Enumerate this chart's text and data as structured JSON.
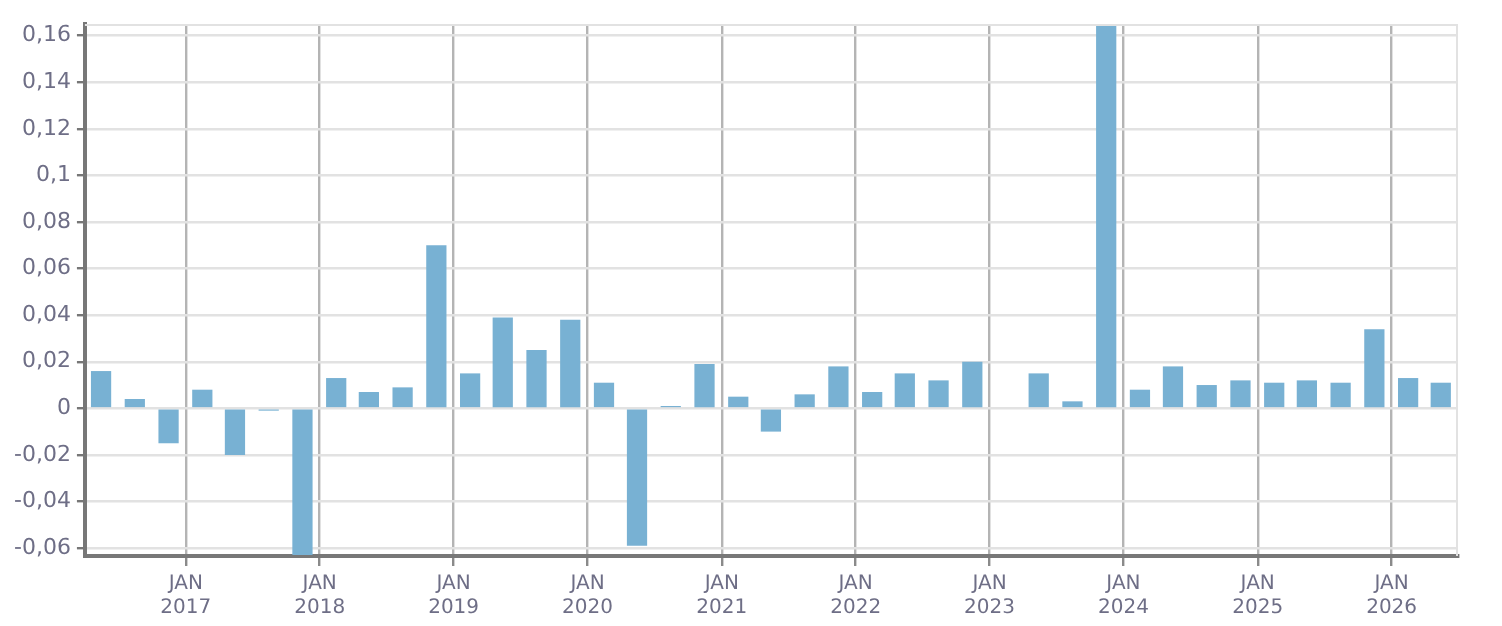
{
  "chart_data": {
    "type": "bar",
    "x": [
      "2016-05-15",
      "2016-08-15",
      "2016-11-15",
      "2017-02-15",
      "2017-05-15",
      "2017-08-15",
      "2017-11-15",
      "2018-02-15",
      "2018-05-15",
      "2018-08-15",
      "2018-11-15",
      "2019-02-15",
      "2019-05-15",
      "2019-08-15",
      "2019-11-15",
      "2020-02-15",
      "2020-05-15",
      "2020-08-15",
      "2020-11-15",
      "2021-02-15",
      "2021-05-15",
      "2021-08-15",
      "2021-11-15",
      "2022-02-15",
      "2022-05-15",
      "2022-08-15",
      "2022-11-15",
      "2023-02-15",
      "2023-05-15",
      "2023-08-15",
      "2023-11-15",
      "2024-02-15",
      "2024-05-15",
      "2024-08-15",
      "2024-11-15",
      "2025-02-15",
      "2025-05-15",
      "2025-08-15",
      "2025-11-15",
      "2026-02-15",
      "2026-05-15"
    ],
    "values": [
      0.016,
      0.004,
      -0.015,
      0.008,
      -0.02,
      -0.001,
      -0.063,
      0.013,
      0.007,
      0.009,
      0.07,
      0.015,
      0.039,
      0.025,
      0.038,
      0.011,
      -0.059,
      0.001,
      0.019,
      0.005,
      -0.01,
      0.006,
      0.018,
      0.007,
      0.015,
      0.012,
      0.02,
      null,
      0.015,
      0.003,
      0.165,
      0.008,
      0.018,
      0.01,
      0.012,
      0.011,
      0.012,
      0.011,
      0.034,
      0.013,
      0.011
    ],
    "color": "#78b1d3",
    "xlim": [
      "2016-04-01",
      "2026-07-01"
    ],
    "xticks": [
      {
        "value": "2017-01-01",
        "label": "JAN 2017"
      },
      {
        "value": "2018-01-01",
        "label": "JAN 2018"
      },
      {
        "value": "2019-01-01",
        "label": "JAN 2019"
      },
      {
        "value": "2020-01-01",
        "label": "JAN 2020"
      },
      {
        "value": "2021-01-01",
        "label": "JAN 2021"
      },
      {
        "value": "2022-01-01",
        "label": "JAN 2022"
      },
      {
        "value": "2023-01-01",
        "label": "JAN 2023"
      },
      {
        "value": "2024-01-01",
        "label": "JAN 2024"
      },
      {
        "value": "2025-01-01",
        "label": "JAN 2025"
      },
      {
        "value": "2026-01-01",
        "label": "JAN 2026"
      }
    ],
    "ylim": [
      -0.0634,
      0.165
    ],
    "yticks": [
      {
        "value": -0.06,
        "label": "-0,06"
      },
      {
        "value": -0.04,
        "label": "-0,04"
      },
      {
        "value": -0.02,
        "label": "-0,02"
      },
      0,
      {
        "value": 0.02,
        "label": "0,02"
      },
      {
        "value": 0.04,
        "label": "0,04"
      },
      {
        "value": 0.06,
        "label": "0,06"
      },
      {
        "value": 0.08,
        "label": "0,08"
      },
      {
        "value": 0.1,
        "label": "0,1"
      },
      {
        "value": 0.12,
        "label": "0,12"
      },
      {
        "value": 0.14,
        "label": "0,14"
      },
      {
        "value": 0.16,
        "label": "0,16"
      }
    ],
    "grid": true
  }
}
